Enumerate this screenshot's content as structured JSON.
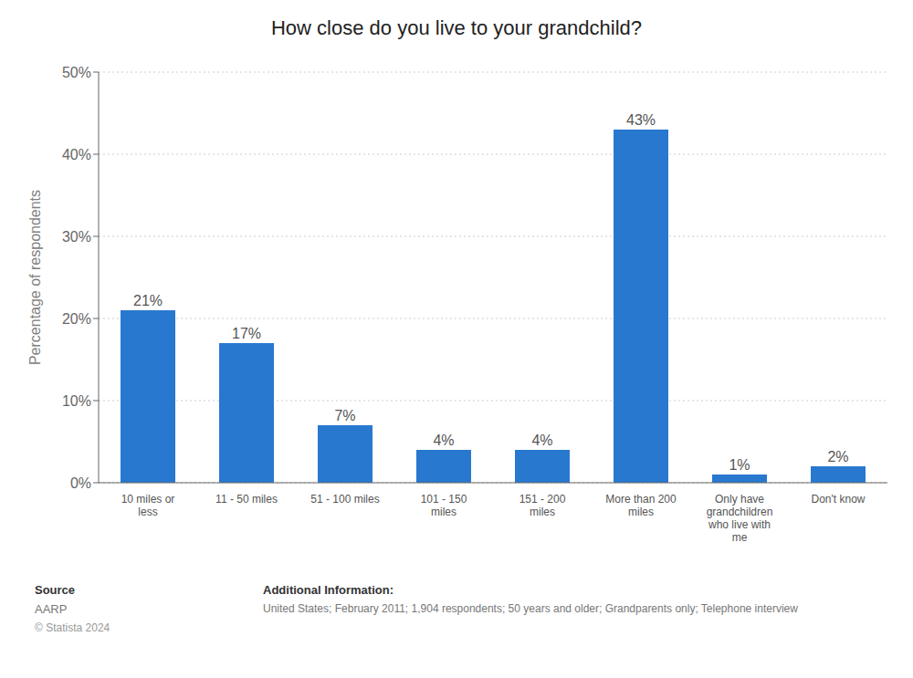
{
  "chart_data": {
    "type": "bar",
    "title": "How close do you live to your grandchild?",
    "categories": [
      "10 miles or\nless",
      "11 - 50 miles",
      "51 - 100 miles",
      "101 - 150\nmiles",
      "151 - 200\nmiles",
      "More than 200\nmiles",
      "Only have\ngrandchildren\nwho live with\nme",
      "Don't know"
    ],
    "values": [
      21,
      17,
      7,
      4,
      4,
      43,
      1,
      2
    ],
    "value_labels": [
      "21%",
      "17%",
      "7%",
      "4%",
      "4%",
      "43%",
      "1%",
      "2%"
    ],
    "data_labels": true,
    "color": "#2878d0",
    "ylabel": "Percentage of respondents",
    "ylim": [
      0,
      50
    ],
    "yticks": [
      {
        "value": 0,
        "label": "0%"
      },
      {
        "value": 10,
        "label": "10%"
      },
      {
        "value": 20,
        "label": "20%"
      },
      {
        "value": 30,
        "label": "30%"
      },
      {
        "value": 40,
        "label": "40%"
      },
      {
        "value": 50,
        "label": "50%"
      }
    ],
    "grid": true,
    "annotations": [
      "Source",
      "AARP",
      "© Statista 2024",
      "Additional Information:",
      "United States; February 2011; 1,904 respondents; 50 years and older; Grandparents only; Telephone interview"
    ]
  }
}
